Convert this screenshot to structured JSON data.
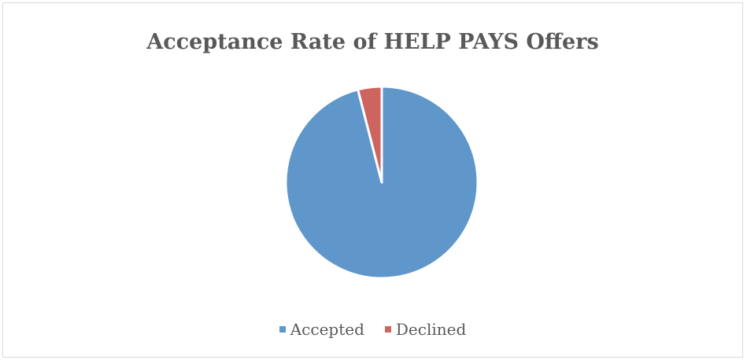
{
  "chart_data": {
    "type": "pie",
    "title": "Acceptance Rate of HELP PAYS Offers",
    "categories": [
      "Accepted",
      "Declined"
    ],
    "values": [
      96,
      4
    ],
    "colors": [
      "#5f97cb",
      "#cd6460"
    ],
    "legend": "bottom",
    "start_angle": "top",
    "direction": "clockwise"
  }
}
